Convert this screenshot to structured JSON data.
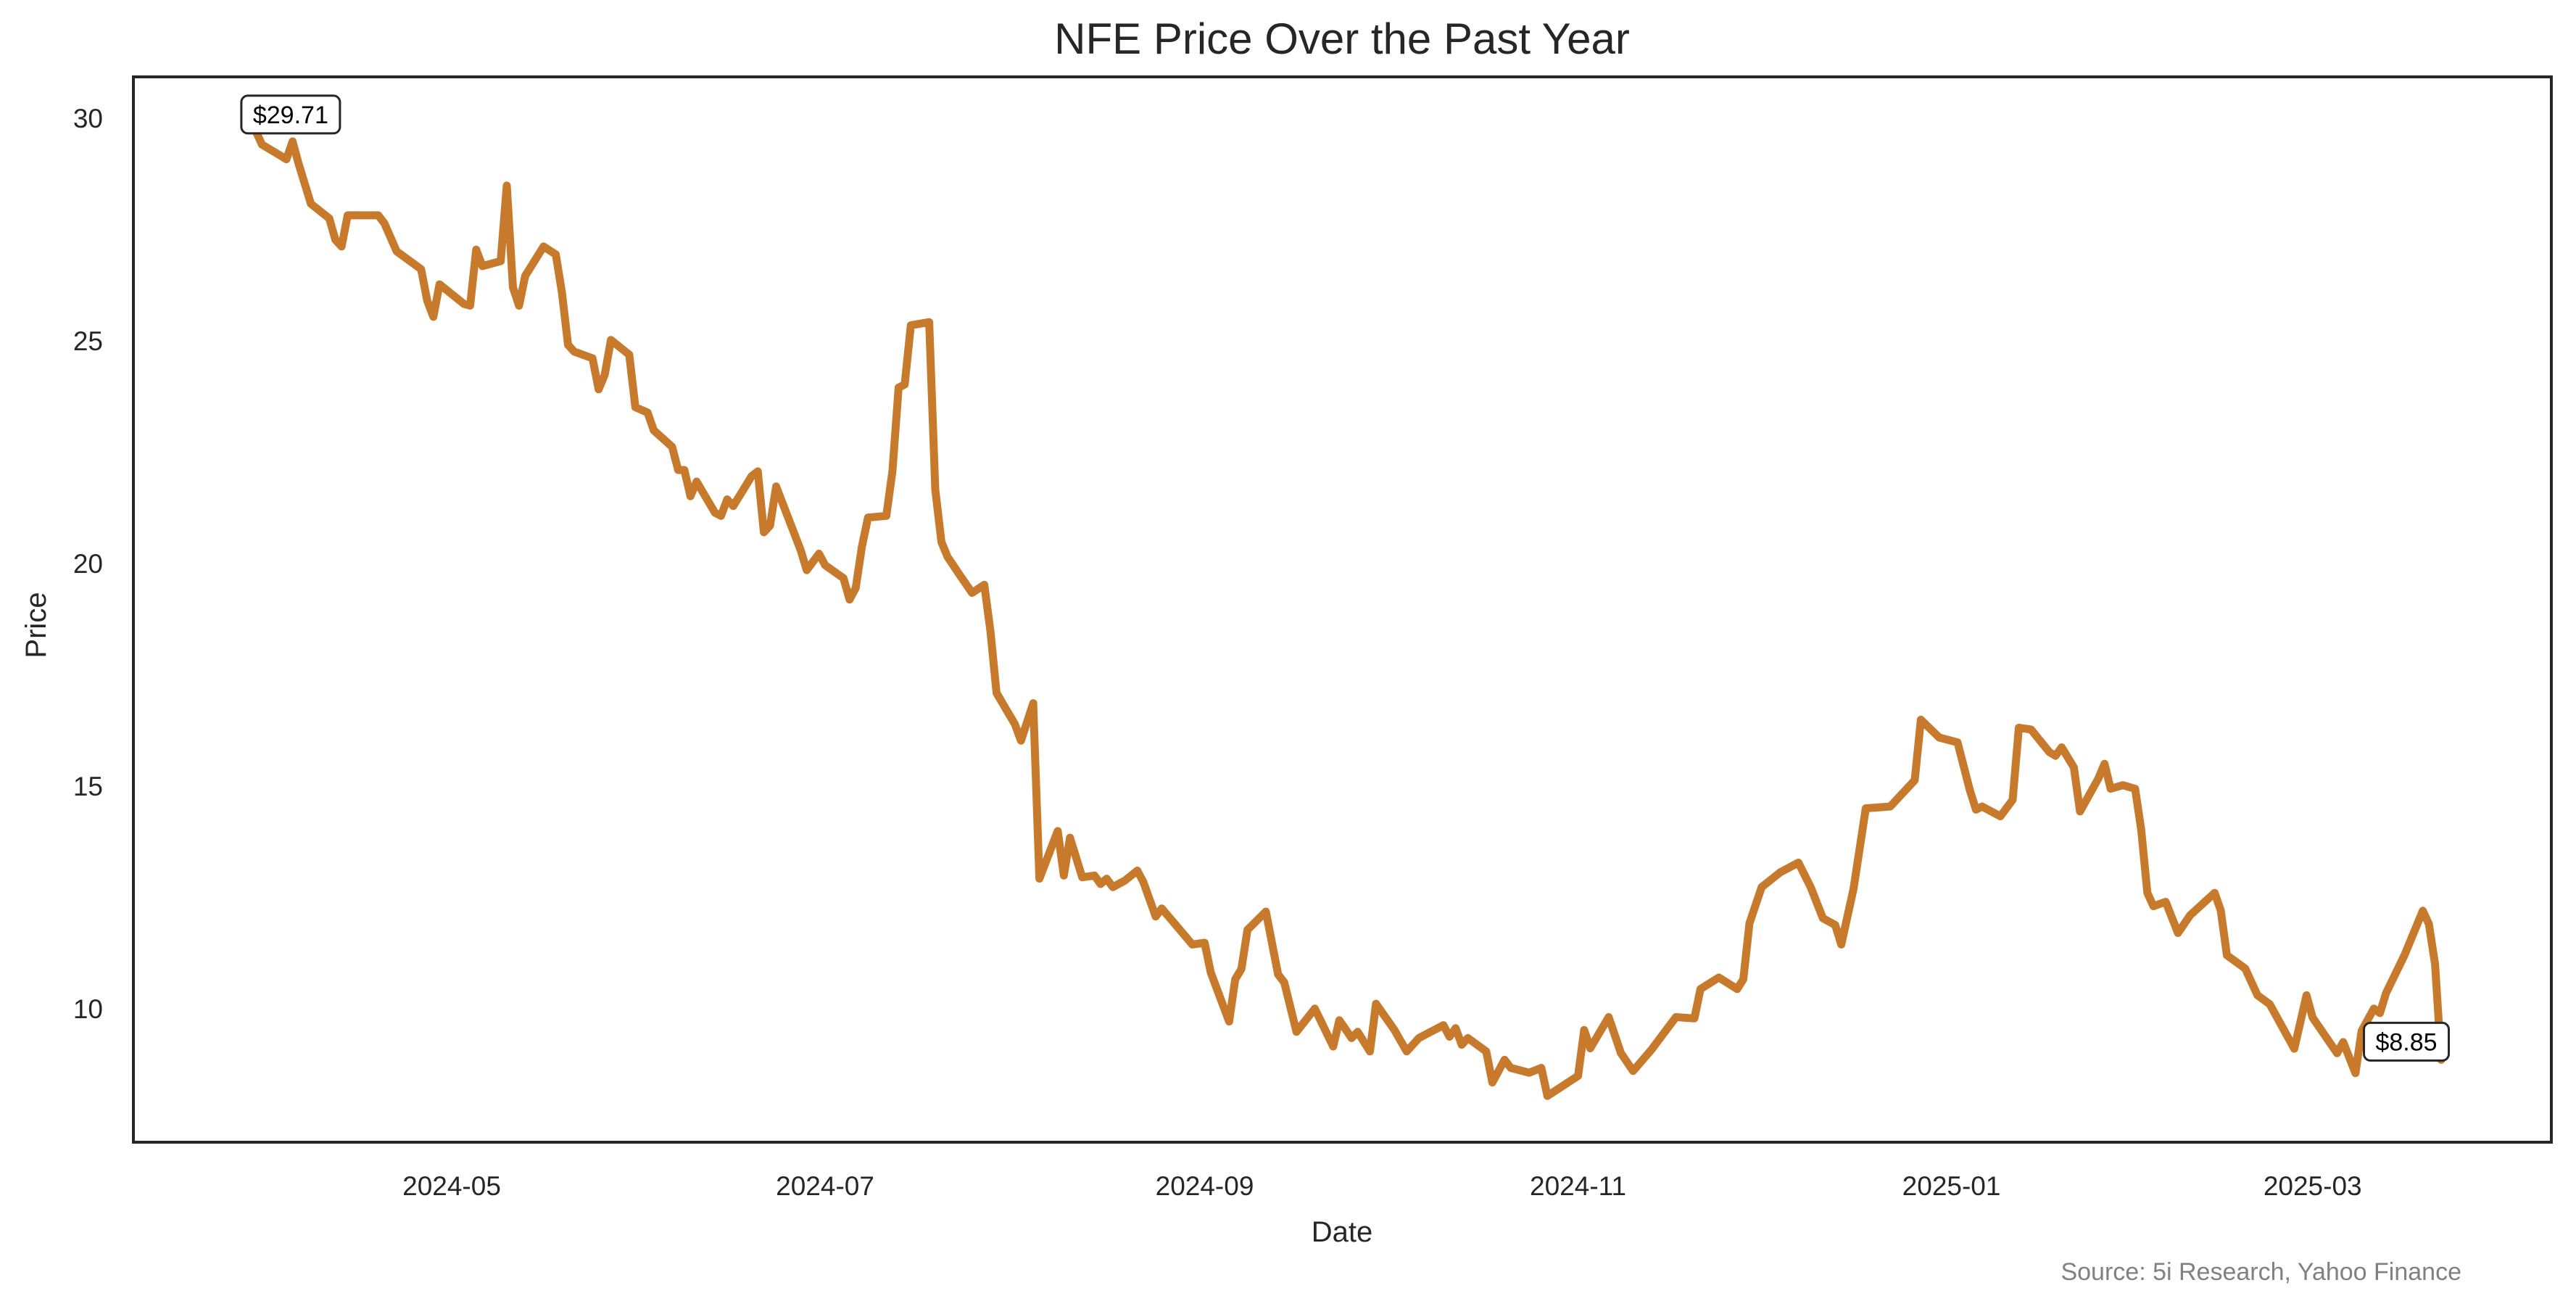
{
  "chart_data": {
    "type": "line",
    "title": "NFE Price Over the Past Year",
    "xlabel": "Date",
    "ylabel": "Price",
    "source": "Source: 5i Research, Yahoo Finance",
    "grid": false,
    "line_color": "#c87a2c",
    "start_date": "2024-03-30",
    "x_unit": "days since start_date",
    "xlim": [
      -20,
      375
    ],
    "ylim": [
      7.0,
      30.93
    ],
    "x_ticks": [
      {
        "label": "2024-05",
        "day": 32
      },
      {
        "label": "2024-07",
        "day": 93
      },
      {
        "label": "2024-09",
        "day": 155
      },
      {
        "label": "2024-11",
        "day": 216
      },
      {
        "label": "2025-01",
        "day": 277
      },
      {
        "label": "2025-03",
        "day": 336
      }
    ],
    "y_ticks": [
      {
        "label": "10",
        "value": 10
      },
      {
        "label": "15",
        "value": 15
      },
      {
        "label": "20",
        "value": 20
      },
      {
        "label": "25",
        "value": 25
      },
      {
        "label": "30",
        "value": 30
      }
    ],
    "annotations": [
      {
        "text": "$29.71",
        "day": 0,
        "value": 29.71
      },
      {
        "text": "$8.85",
        "day": 357,
        "value": 8.85
      }
    ],
    "series": [
      {
        "name": "NFE",
        "days": [
          0,
          1,
          5,
          6,
          7,
          9,
          12,
          13,
          14,
          15,
          20,
          21,
          23,
          27,
          28,
          29,
          30,
          34,
          35,
          36,
          37,
          40,
          41,
          42,
          43,
          44,
          47,
          49,
          50,
          51,
          52,
          55,
          56,
          57,
          58,
          61,
          62,
          64,
          65,
          68,
          69,
          70,
          71,
          72,
          75,
          76,
          77,
          78,
          81,
          82,
          83,
          84,
          85,
          89,
          90,
          92,
          93,
          96,
          97,
          98,
          99,
          100,
          103,
          104,
          105,
          106,
          107,
          110,
          111,
          112,
          113,
          115,
          117,
          119,
          120,
          121,
          124,
          125,
          127,
          128,
          131,
          132,
          133,
          135,
          137,
          138,
          139,
          140,
          142,
          144,
          145,
          147,
          148,
          153,
          155,
          156,
          159,
          160,
          161,
          162,
          165,
          167,
          168,
          170,
          173,
          176,
          177,
          179,
          180,
          182,
          183,
          186,
          188,
          190,
          194,
          195,
          196,
          197,
          198,
          201,
          202,
          204,
          205,
          208,
          210,
          211,
          216,
          217,
          218,
          221,
          223,
          225,
          228,
          231,
          232,
          235,
          236,
          239,
          242,
          243,
          244,
          246,
          249,
          252,
          254,
          256,
          258,
          259,
          261,
          263,
          267,
          271,
          272,
          275,
          278,
          280,
          281,
          282,
          285,
          287,
          288,
          290,
          293,
          294,
          295,
          297,
          298,
          301,
          302,
          303,
          305,
          307,
          308,
          309,
          310,
          312,
          314,
          316,
          320,
          321,
          322,
          325,
          327,
          329,
          333,
          335,
          336,
          340,
          341,
          343,
          344,
          346,
          347,
          348,
          351,
          354,
          355,
          356,
          357
        ],
        "values": [
          29.71,
          29.41,
          29.08,
          29.48,
          28.97,
          28.08,
          27.75,
          27.27,
          27.12,
          27.82,
          27.82,
          27.64,
          27.01,
          26.61,
          25.9,
          25.54,
          26.27,
          25.83,
          25.79,
          27.05,
          26.68,
          26.79,
          28.49,
          26.2,
          25.79,
          26.46,
          27.12,
          26.94,
          26.09,
          24.91,
          24.76,
          24.61,
          23.91,
          24.24,
          25.02,
          24.69,
          23.51,
          23.39,
          22.99,
          22.62,
          22.1,
          22.1,
          21.51,
          21.84,
          21.14,
          21.07,
          21.44,
          21.29,
          21.96,
          22.07,
          20.7,
          20.85,
          21.73,
          20.3,
          19.85,
          20.22,
          19.96,
          19.67,
          19.19,
          19.45,
          20.37,
          21.03,
          21.07,
          22.07,
          23.95,
          24.02,
          25.35,
          25.42,
          21.66,
          20.48,
          20.15,
          19.74,
          19.34,
          19.52,
          18.49,
          17.09,
          16.39,
          16.02,
          16.86,
          12.92,
          13.99,
          12.99,
          13.84,
          12.95,
          12.99,
          12.8,
          12.92,
          12.73,
          12.88,
          13.1,
          12.84,
          12.07,
          12.25,
          11.44,
          11.48,
          10.81,
          9.71,
          10.66,
          10.89,
          11.77,
          12.18,
          10.77,
          10.59,
          9.48,
          10.0,
          9.15,
          9.74,
          9.34,
          9.48,
          9.04,
          10.11,
          9.52,
          9.04,
          9.34,
          9.63,
          9.37,
          9.56,
          9.19,
          9.34,
          9.04,
          8.34,
          8.85,
          8.67,
          8.56,
          8.67,
          8.04,
          8.49,
          9.52,
          9.11,
          9.81,
          9.0,
          8.6,
          9.08,
          9.63,
          9.81,
          9.78,
          10.44,
          10.7,
          10.44,
          10.66,
          11.92,
          12.73,
          13.06,
          13.28,
          12.73,
          12.03,
          11.88,
          11.44,
          12.69,
          14.5,
          14.54,
          15.13,
          16.49,
          16.09,
          15.98,
          14.91,
          14.47,
          14.54,
          14.32,
          14.69,
          16.31,
          16.27,
          15.76,
          15.68,
          15.87,
          15.42,
          14.43,
          15.17,
          15.5,
          14.94,
          15.02,
          14.94,
          14.02,
          12.6,
          12.3,
          12.4,
          11.7,
          12.1,
          12.6,
          12.2,
          11.2,
          10.9,
          10.3,
          10.1,
          9.1,
          10.3,
          9.8,
          9.0,
          9.25,
          8.55,
          9.5,
          10.0,
          9.9,
          10.35,
          11.2,
          12.2,
          11.9,
          11.0,
          8.85
        ]
      }
    ]
  }
}
